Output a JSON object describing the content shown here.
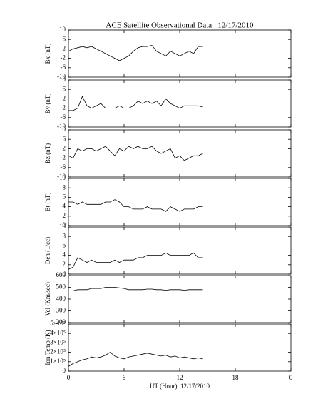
{
  "chart_data": [
    {
      "type": "line",
      "title": "ACE Satellite Observational Data   12/17/2010",
      "ylabel": "Bx (nT)",
      "color": "#000000",
      "x": [
        0,
        0.5,
        1,
        1.5,
        2,
        2.5,
        3,
        3.5,
        4,
        4.5,
        5,
        5.5,
        6,
        6.5,
        7,
        7.5,
        8,
        8.5,
        9,
        9.5,
        10,
        10.5,
        11,
        11.5,
        12,
        12.5,
        13,
        13.5,
        14,
        14.5
      ],
      "values": [
        1,
        2,
        2.5,
        3,
        2.5,
        3,
        2,
        1,
        0,
        -1,
        -2,
        -3,
        -2,
        -1,
        1,
        2.5,
        3,
        3,
        3.5,
        1,
        0,
        -1,
        1,
        0,
        -1,
        0,
        1,
        0,
        3,
        3
      ],
      "xlim": [
        0,
        24
      ],
      "xticks": [
        0,
        6,
        12,
        18,
        {
          "value": 24,
          "label": "0"
        }
      ],
      "ylim": [
        -10,
        10
      ],
      "yticks": [
        -10,
        -6,
        -2,
        2,
        6,
        10
      ]
    },
    {
      "type": "line",
      "ylabel": "By (nT)",
      "color": "#000000",
      "x": [
        0,
        0.5,
        1,
        1.5,
        2,
        2.5,
        3,
        3.5,
        4,
        4.5,
        5,
        5.5,
        6,
        6.5,
        7,
        7.5,
        8,
        8.5,
        9,
        9.5,
        10,
        10.5,
        11,
        11.5,
        12,
        12.5,
        13,
        13.5,
        14,
        14.5
      ],
      "values": [
        -3,
        -3,
        -2,
        3,
        -1,
        -2,
        -1,
        0,
        -2,
        -2,
        -2,
        -1,
        -2,
        -2,
        -1,
        1,
        0,
        1,
        0,
        1,
        -1,
        2,
        0,
        -1,
        -2,
        -1,
        -1,
        -1,
        -1,
        -1.5
      ],
      "xlim": [
        0,
        24
      ],
      "xticks": [
        0,
        6,
        12,
        18,
        {
          "value": 24,
          "label": "0"
        }
      ],
      "ylim": [
        -10,
        10
      ],
      "yticks": [
        -10,
        -6,
        -2,
        2,
        6,
        10
      ]
    },
    {
      "type": "line",
      "ylabel": "Bz (nT)",
      "color": "#000000",
      "x": [
        0,
        0.5,
        1,
        1.5,
        2,
        2.5,
        3,
        3.5,
        4,
        4.5,
        5,
        5.5,
        6,
        6.5,
        7,
        7.5,
        8,
        8.5,
        9,
        9.5,
        10,
        10.5,
        11,
        11.5,
        12,
        12.5,
        13,
        13.5,
        14,
        14.5
      ],
      "values": [
        -1,
        -2,
        2,
        1,
        2,
        2,
        1,
        2,
        3,
        1,
        -1,
        2,
        1,
        3,
        2,
        3,
        2,
        2,
        3,
        1,
        0,
        1,
        2,
        -2,
        -1,
        -3,
        -2,
        -1,
        -1,
        0
      ],
      "xlim": [
        0,
        24
      ],
      "xticks": [
        0,
        6,
        12,
        18,
        {
          "value": 24,
          "label": "0"
        }
      ],
      "ylim": [
        -10,
        10
      ],
      "yticks": [
        -10,
        -6,
        -2,
        2,
        6,
        10
      ]
    },
    {
      "type": "line",
      "ylabel": "Bt (nT)",
      "color": "#000000",
      "x": [
        0,
        0.5,
        1,
        1.5,
        2,
        2.5,
        3,
        3.5,
        4,
        4.5,
        5,
        5.5,
        6,
        6.5,
        7,
        7.5,
        8,
        8.5,
        9,
        9.5,
        10,
        10.5,
        11,
        11.5,
        12,
        12.5,
        13,
        13.5,
        14,
        14.5
      ],
      "values": [
        5,
        5,
        4.5,
        5,
        4.5,
        4.5,
        4.5,
        4.5,
        5,
        5,
        5.5,
        5,
        4,
        4,
        3.5,
        3.5,
        3.5,
        4,
        3.5,
        3.5,
        3.5,
        3,
        4,
        3.5,
        3,
        3.5,
        3.5,
        3.5,
        4,
        4
      ],
      "xlim": [
        0,
        24
      ],
      "xticks": [
        0,
        6,
        12,
        18,
        {
          "value": 24,
          "label": "0"
        }
      ],
      "ylim": [
        0,
        10
      ],
      "yticks": [
        0,
        2,
        4,
        6,
        8,
        10
      ]
    },
    {
      "type": "line",
      "ylabel": "Den (1/cc)",
      "color": "#000000",
      "x": [
        0,
        0.5,
        1,
        1.5,
        2,
        2.5,
        3,
        3.5,
        4,
        4.5,
        5,
        5.5,
        6,
        6.5,
        7,
        7.5,
        8,
        8.5,
        9,
        9.5,
        10,
        10.5,
        11,
        11.5,
        12,
        12.5,
        13,
        13.5,
        14,
        14.5
      ],
      "values": [
        1,
        1.5,
        3.5,
        3,
        2.5,
        3,
        2.5,
        2.5,
        2.5,
        2.5,
        3,
        2.5,
        3,
        3,
        3,
        3.5,
        3.5,
        4,
        4,
        4,
        4,
        4.5,
        4,
        4,
        4,
        4,
        4,
        4.5,
        3.5,
        3.5
      ],
      "xlim": [
        0,
        24
      ],
      "xticks": [
        0,
        6,
        12,
        18,
        {
          "value": 24,
          "label": "0"
        }
      ],
      "ylim": [
        0,
        10
      ],
      "yticks": [
        0,
        2,
        4,
        6,
        8,
        10
      ]
    },
    {
      "type": "line",
      "ylabel": "Vel (Km/sec)",
      "color": "#000000",
      "x": [
        0,
        0.5,
        1,
        1.5,
        2,
        2.5,
        3,
        3.5,
        4,
        4.5,
        5,
        5.5,
        6,
        6.5,
        7,
        7.5,
        8,
        8.5,
        9,
        9.5,
        10,
        10.5,
        11,
        11.5,
        12,
        12.5,
        13,
        13.5,
        14,
        14.5
      ],
      "values": [
        470,
        470,
        480,
        480,
        480,
        490,
        490,
        490,
        500,
        500,
        500,
        495,
        490,
        480,
        480,
        480,
        480,
        485,
        485,
        480,
        480,
        475,
        480,
        480,
        480,
        475,
        480,
        480,
        480,
        480
      ],
      "xlim": [
        0,
        24
      ],
      "xticks": [
        0,
        6,
        12,
        18,
        {
          "value": 24,
          "label": "0"
        }
      ],
      "ylim": [
        200,
        600
      ],
      "yticks": [
        200,
        300,
        400,
        500,
        600
      ]
    },
    {
      "type": "line",
      "ylabel": "Ion Temp (K)",
      "xlabel": "UT (Hour)  12/17/2010",
      "color": "#000000",
      "x": [
        0,
        0.5,
        1,
        1.5,
        2,
        2.5,
        3,
        3.5,
        4,
        4.5,
        5,
        5.5,
        6,
        6.5,
        7,
        7.5,
        8,
        8.5,
        9,
        9.5,
        10,
        10.5,
        11,
        11.5,
        12,
        12.5,
        13,
        13.5,
        14,
        14.5
      ],
      "values": [
        50000,
        80000,
        100000,
        120000,
        130000,
        150000,
        140000,
        150000,
        170000,
        200000,
        160000,
        140000,
        130000,
        150000,
        160000,
        170000,
        180000,
        190000,
        180000,
        170000,
        160000,
        170000,
        150000,
        160000,
        140000,
        150000,
        140000,
        130000,
        140000,
        130000
      ],
      "xlim": [
        0,
        24
      ],
      "xticks": [
        0,
        6,
        12,
        18,
        {
          "value": 24,
          "label": "0"
        }
      ],
      "ylim": [
        0,
        500000
      ],
      "yticks": [
        0,
        {
          "value": 100000,
          "label": "1×10⁵"
        },
        {
          "value": 200000,
          "label": "2×10⁵"
        },
        {
          "value": 300000,
          "label": "3×10⁵"
        },
        {
          "value": 400000,
          "label": "4×10⁵"
        },
        {
          "value": 500000,
          "label": "5×10⁵"
        }
      ]
    }
  ]
}
